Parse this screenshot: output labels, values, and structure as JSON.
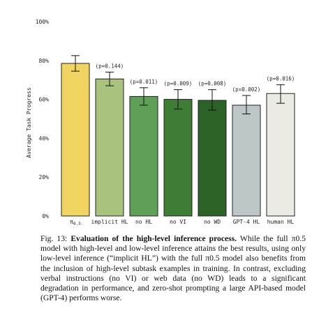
{
  "chart_data": {
    "type": "bar",
    "ylabel": "Average Task Progress",
    "xlabel": "",
    "ylim": [
      0,
      100
    ],
    "yticks": [
      0,
      20,
      40,
      60,
      80,
      100
    ],
    "ytick_labels": [
      "0%",
      "20%",
      "40%",
      "60%",
      "80%",
      "100%"
    ],
    "grid": false,
    "bars": [
      {
        "label": "π0.5",
        "value": 78.5,
        "err_low": 74.5,
        "err_high": 82.5,
        "p": "",
        "color": "#f1d462"
      },
      {
        "label": "implicit HL",
        "value": 70.5,
        "err_low": 67.0,
        "err_high": 74.0,
        "p": "(p=0.144)",
        "color": "#a9c27e"
      },
      {
        "label": "no HL",
        "value": 61.5,
        "err_low": 57.0,
        "err_high": 66.0,
        "p": "(p=0.011)",
        "color": "#5f9f58"
      },
      {
        "label": "no VI",
        "value": 60.0,
        "err_low": 55.0,
        "err_high": 65.0,
        "p": "(p=0.009)",
        "color": "#3f7d37"
      },
      {
        "label": "no WD",
        "value": 59.5,
        "err_low": 54.5,
        "err_high": 65.0,
        "p": "(p=0.008)",
        "color": "#2c6128"
      },
      {
        "label": "GPT-4 HL",
        "value": 57.0,
        "err_low": 52.5,
        "err_high": 62.0,
        "p": "(p=0.002)",
        "color": "#bdc6c7"
      },
      {
        "label": "human HL",
        "value": 63.0,
        "err_low": 58.0,
        "err_high": 67.5,
        "p": "(p=0.016)",
        "color": "#ecebe3"
      }
    ]
  },
  "caption": {
    "label": "Fig. 13:",
    "title": "Evaluation of the high-level inference process.",
    "body": "While the full π0.5 model with high-level and low-level inference attains the best results, using only low-level inference (“implicit HL”) with the full π0.5 model also benefits from the inclusion of high-level subtask examples in training. In contrast, excluding verbal instructions (no VI) or web data (no WD) leads to a significant degradation in performance, and zero-shot prompting a large API-based model (GPT-4) performs worse."
  }
}
